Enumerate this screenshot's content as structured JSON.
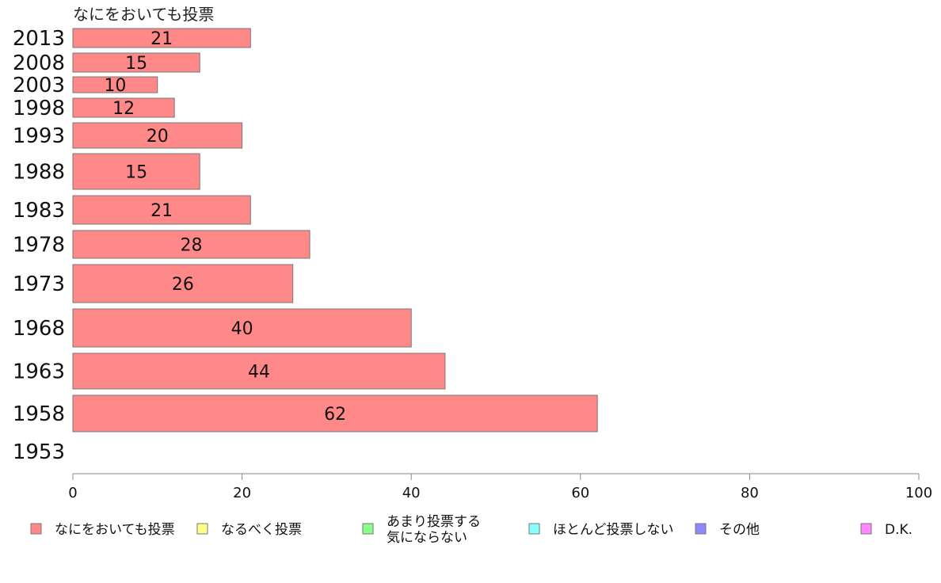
{
  "chart_data": {
    "type": "bar",
    "orientation": "horizontal",
    "title": "なにをおいても投票",
    "categories": [
      "2013",
      "2008",
      "2003",
      "1998",
      "1993",
      "1988",
      "1983",
      "1978",
      "1973",
      "1968",
      "1963",
      "1958",
      "1953"
    ],
    "series": [
      {
        "name": "なにをおいても投票",
        "values": [
          21,
          15,
          10,
          12,
          20,
          15,
          21,
          28,
          26,
          40,
          44,
          62,
          null
        ]
      }
    ],
    "xlim": [
      0,
      100
    ],
    "xticks": [
      "0",
      "20",
      "40",
      "60",
      "80",
      "100"
    ],
    "grid": false,
    "legend_position": "bottom",
    "legend": [
      {
        "label": "なにをおいても投票",
        "color": "#ff8888"
      },
      {
        "label": "なるべく投票",
        "color": "#ffff88"
      },
      {
        "label": "あまり投票する\n気にならない",
        "color": "#88ff88"
      },
      {
        "label": "ほとんど投票しない",
        "color": "#88ffff"
      },
      {
        "label": "その他",
        "color": "#8888ff"
      },
      {
        "label": "D.K.",
        "color": "#ff88ff"
      }
    ],
    "colors": {
      "bar_fill": "#ff8888",
      "bar_stroke": "#777777",
      "axis": "#888888"
    }
  }
}
